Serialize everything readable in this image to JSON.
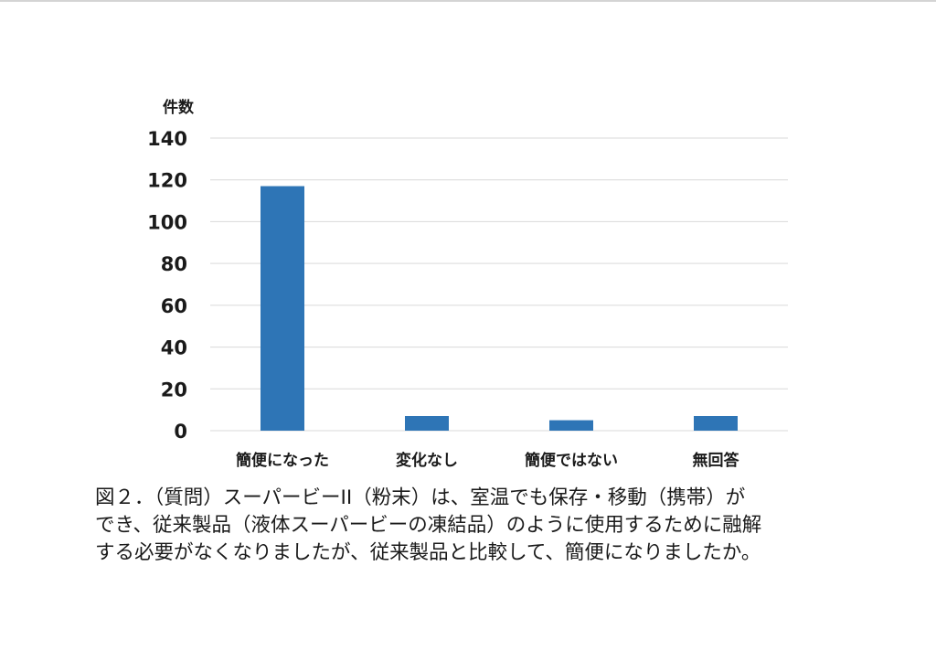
{
  "chart_data": {
    "type": "bar",
    "categories": [
      "簡便になった",
      "変化なし",
      "簡便ではない",
      "無回答"
    ],
    "values": [
      117,
      7,
      5,
      7
    ],
    "ylabel": "件数",
    "ylim": [
      0,
      140
    ],
    "yticks": [
      0,
      20,
      40,
      60,
      80,
      100,
      120,
      140
    ],
    "grid": true,
    "bar_color": "#2e75b6",
    "grid_color": "#d9d9d9"
  },
  "caption": {
    "line1": "図２．（質問）スーパービーII（粉末）は、室温でも保存・移動（携帯）が",
    "line2": "でき、従来製品（液体スーパービーの凍結品）のように使用するために融解",
    "line3": "する必要がなくなりましたが、従来製品と比較して、簡便になりましたか。"
  }
}
